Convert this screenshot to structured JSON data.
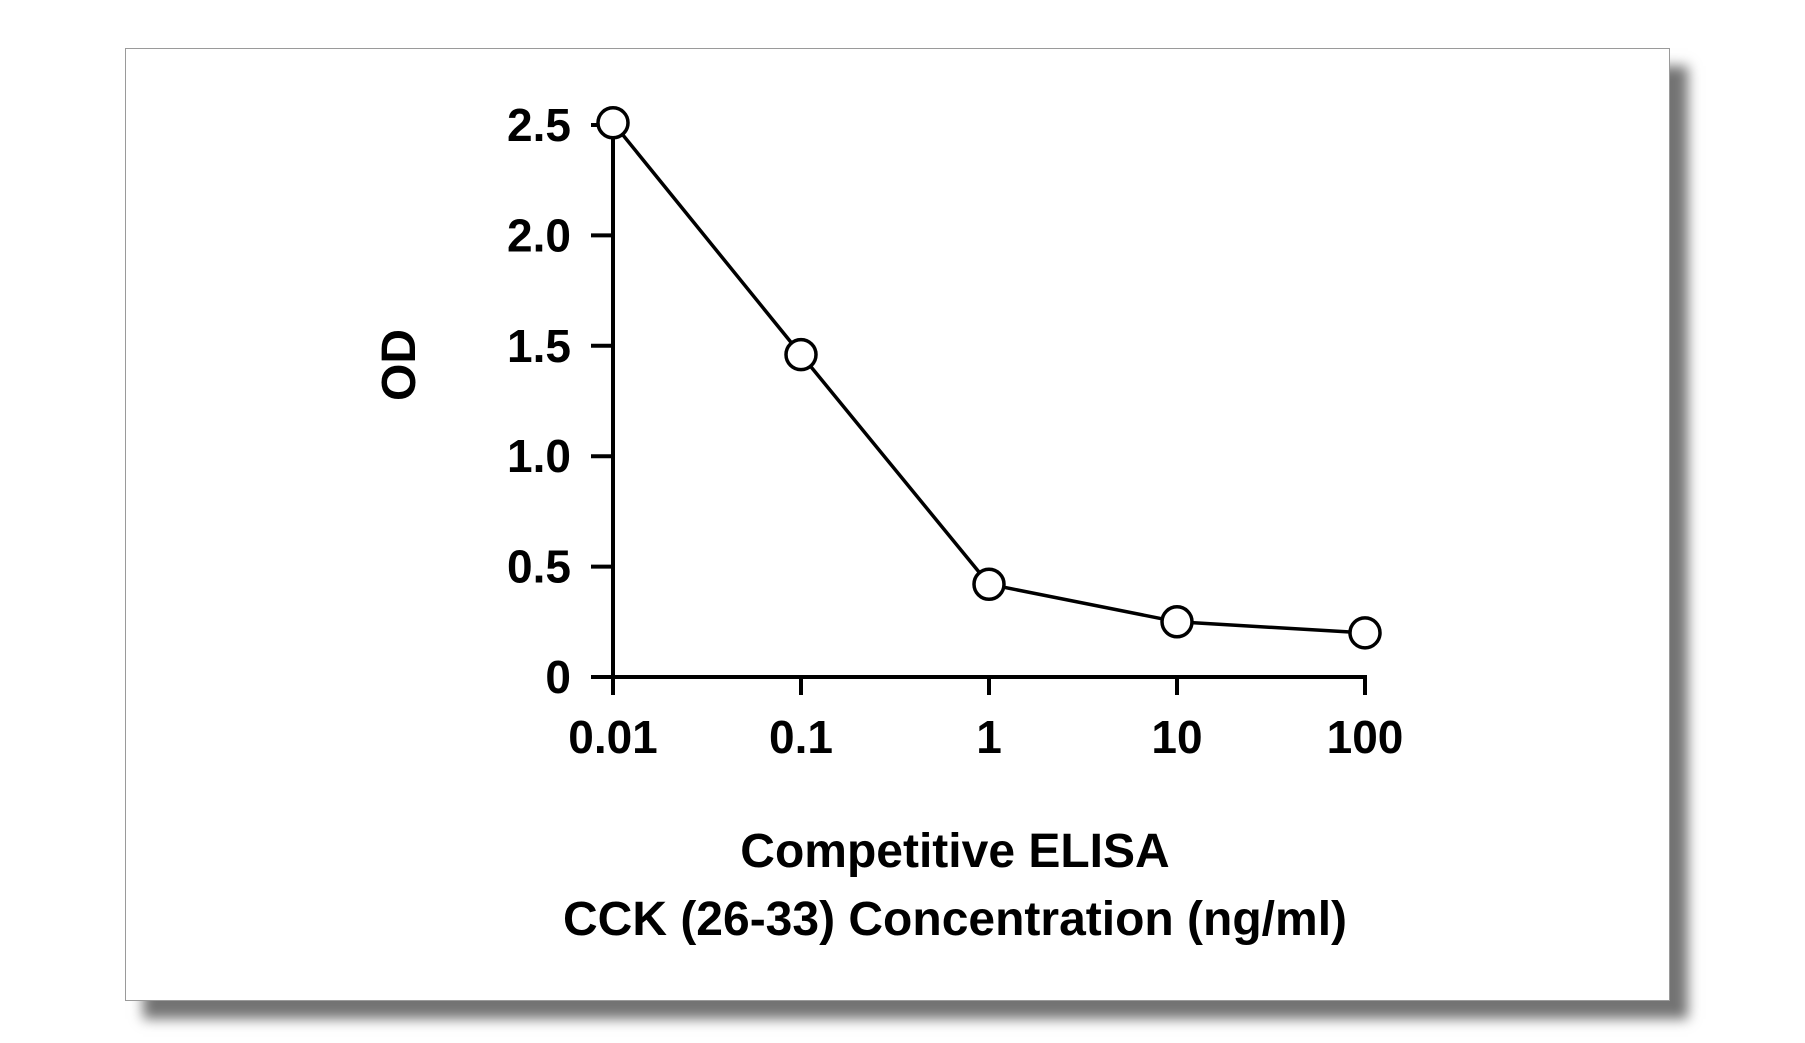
{
  "chart_data": {
    "type": "line",
    "x_scale": "log",
    "x": [
      0.01,
      0.1,
      1,
      10,
      100
    ],
    "x_tick_labels": [
      "0.01",
      "0.1",
      "1",
      "10",
      "100"
    ],
    "y_ticks": [
      0,
      0.5,
      1.0,
      1.5,
      2.0,
      2.5
    ],
    "y_tick_labels": [
      "0",
      "0.5",
      "1.0",
      "1.5",
      "2.0",
      "2.5"
    ],
    "series": [
      {
        "values": [
          2.51,
          1.46,
          0.42,
          0.25,
          0.2
        ]
      }
    ],
    "ylabel": "OD",
    "xlabel_line1": "Competitive ELISA",
    "xlabel_line2": "CCK (26-33) Concentration (ng/ml)",
    "ylim": [
      0,
      2.5
    ],
    "xlim": [
      0.01,
      100
    ],
    "grid": false,
    "marker": "open-circle",
    "line_color": "#000000",
    "marker_fill": "#ffffff"
  }
}
